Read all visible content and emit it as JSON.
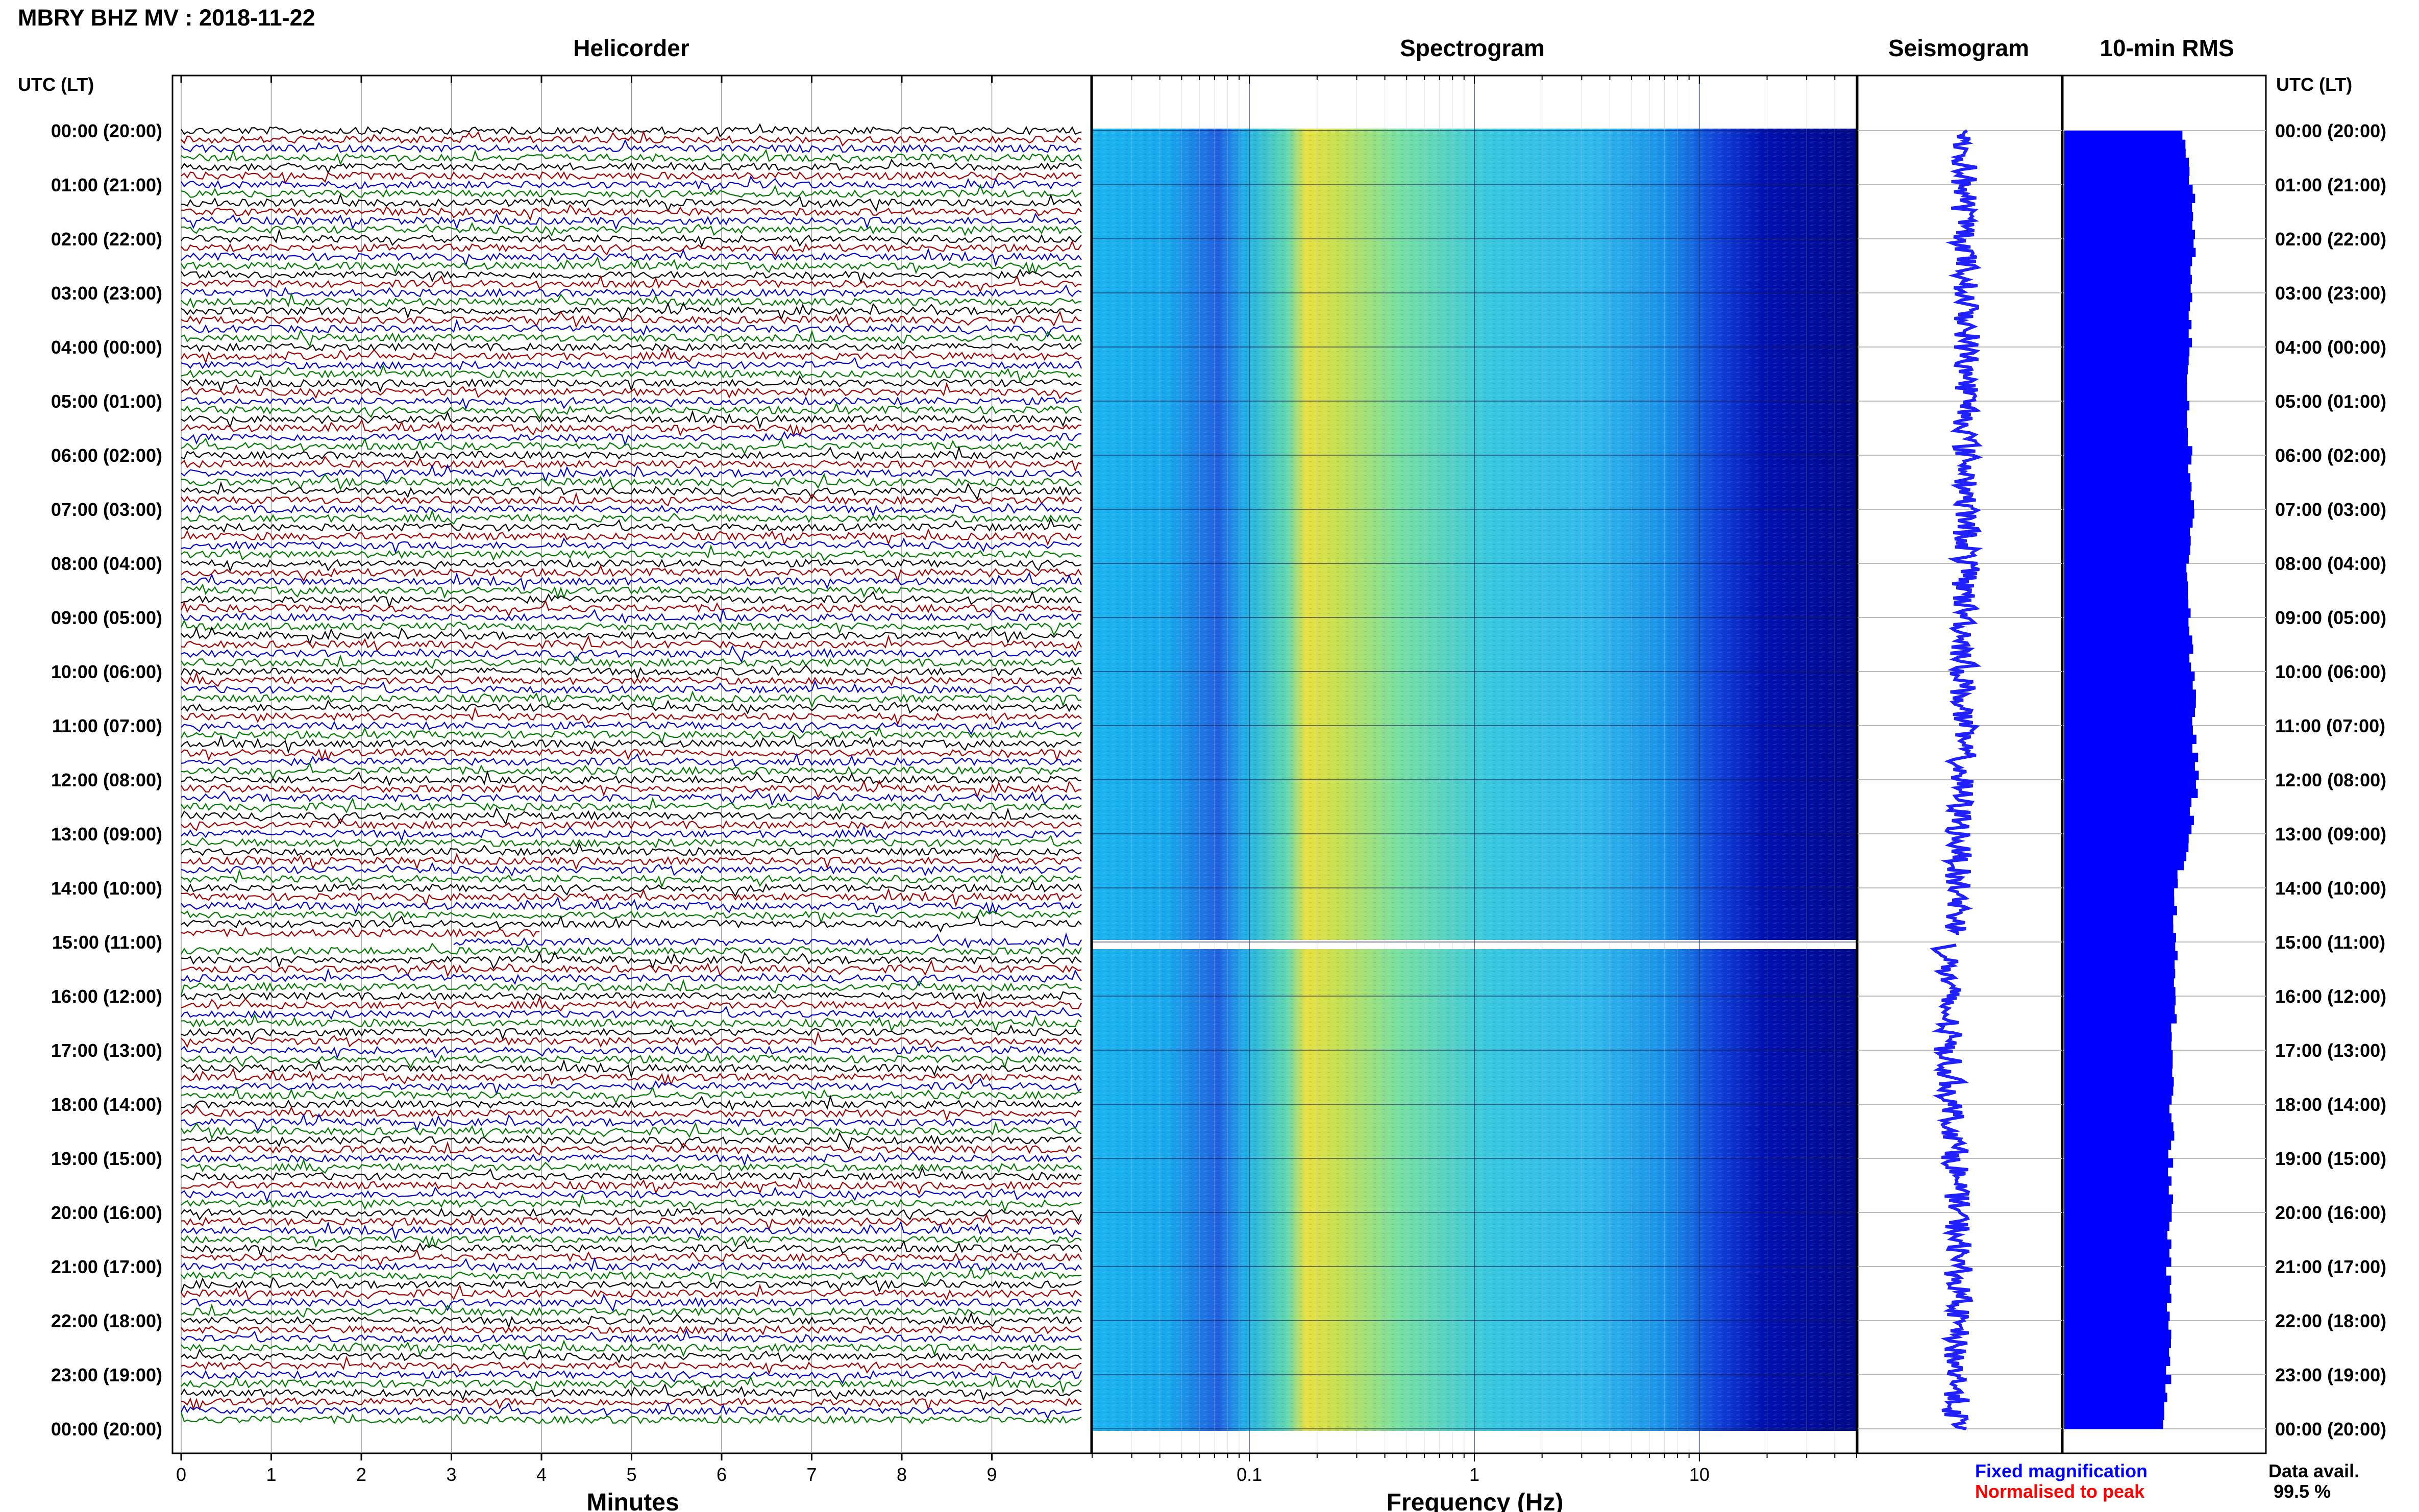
{
  "header": {
    "title": "MBRY BHZ MV : 2018-11-22",
    "time_axis_label_left": "UTC (LT)",
    "time_axis_label_right": "UTC (LT)"
  },
  "panels": {
    "helicorder": "Helicorder",
    "spectrogram": "Spectrogram",
    "seismogram": "Seismogram",
    "rms": "10-min RMS"
  },
  "legend": {
    "fixed": "Fixed magnification",
    "normalised": "Normalised to peak",
    "fixed_color": "#0000ff",
    "normalised_color": "#ff0000"
  },
  "data_avail": {
    "label": "Data avail.",
    "value": "99.5 %"
  },
  "colors": {
    "trace_colors": [
      "#000000",
      "#a00000",
      "#0000c8",
      "#007800"
    ],
    "seismogram": "#2020ff",
    "rms_fill": "#0000ff"
  },
  "chart_data": [
    {
      "type": "line",
      "name": "helicorder",
      "xlabel": "Minutes",
      "xlim": [
        0,
        10
      ],
      "x_ticks": [
        "0",
        "1",
        "2",
        "3",
        "4",
        "5",
        "6",
        "7",
        "8",
        "9"
      ],
      "lines_per_hour": 6,
      "time_ticks": [
        "00:00 (20:00)",
        "01:00 (21:00)",
        "02:00 (22:00)",
        "03:00 (23:00)",
        "04:00 (00:00)",
        "05:00 (01:00)",
        "06:00 (02:00)",
        "07:00 (03:00)",
        "08:00 (04:00)",
        "09:00 (05:00)",
        "10:00 (06:00)",
        "11:00 (07:00)",
        "12:00 (08:00)",
        "13:00 (09:00)",
        "14:00 (10:00)",
        "15:00 (11:00)",
        "16:00 (12:00)",
        "17:00 (13:00)",
        "18:00 (14:00)",
        "19:00 (15:00)",
        "20:00 (16:00)",
        "21:00 (17:00)",
        "22:00 (18:00)",
        "23:00 (19:00)",
        "00:00 (20:00)"
      ],
      "gap_start_hour": 14.9,
      "gap_end_hour": 15.05
    },
    {
      "type": "heatmap",
      "name": "spectrogram",
      "xlabel": "Frequency (Hz)",
      "x_scale": "log",
      "xlim": [
        0.02,
        50
      ],
      "x_ticks": [
        "0.1",
        "1",
        "10"
      ],
      "peak_band_hz": [
        0.2,
        0.35
      ]
    },
    {
      "type": "line",
      "name": "seismogram",
      "gap_start_hour": 14.9,
      "gap_end_hour": 15.05
    },
    {
      "type": "bar",
      "name": "10-min RMS",
      "interval_minutes": 10,
      "hourly_rms_relative": [
        0.6,
        0.64,
        0.65,
        0.64,
        0.62,
        0.62,
        0.63,
        0.64,
        0.62,
        0.63,
        0.64,
        0.65,
        0.66,
        0.62,
        0.56,
        0.55,
        0.56,
        0.53,
        0.54,
        0.53,
        0.53,
        0.52,
        0.53,
        0.52,
        0.5
      ]
    }
  ]
}
